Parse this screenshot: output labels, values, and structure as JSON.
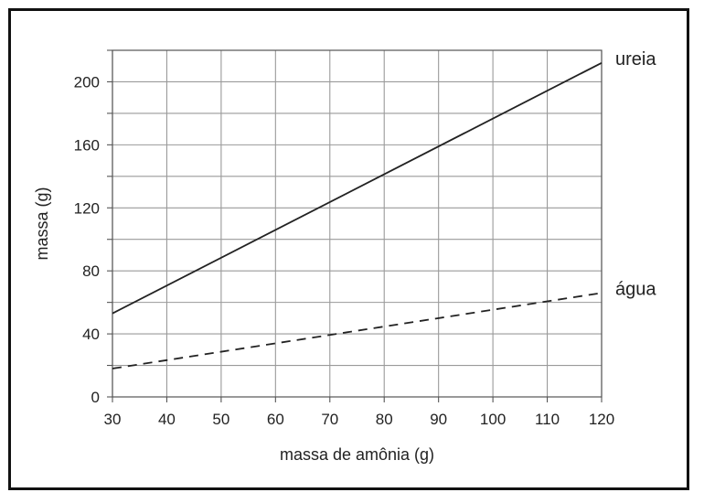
{
  "chart_data": {
    "type": "line",
    "xlabel": "massa de amônia (g)",
    "ylabel": "massa (g)",
    "xlim": [
      30,
      120
    ],
    "ylim": [
      0,
      220
    ],
    "x_ticks": [
      30,
      40,
      50,
      60,
      70,
      80,
      90,
      100,
      110,
      120
    ],
    "y_ticks": [
      0,
      40,
      80,
      120,
      160,
      200
    ],
    "grid": true,
    "legend": "labels at right end of each line",
    "series": [
      {
        "name": "ureia",
        "style": "solid",
        "color": "#222222",
        "x": [
          30,
          120
        ],
        "y": [
          53,
          212
        ]
      },
      {
        "name": "água",
        "style": "dashed",
        "color": "#222222",
        "x": [
          30,
          120
        ],
        "y": [
          18,
          66
        ]
      }
    ]
  }
}
